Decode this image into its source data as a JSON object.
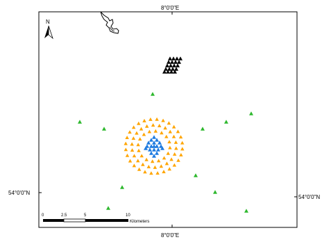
{
  "map": {
    "graticule": {
      "lon_label": "8°0'0\"E",
      "lat_label": "54°0'0\"N"
    },
    "north_arrow": {
      "label": "N",
      "icon": "north-arrow-icon"
    },
    "scale_bar": {
      "ticks": [
        "0",
        "2.5",
        "5",
        "10"
      ],
      "unit": "Kilometers"
    },
    "legend_colors": {
      "black_cluster": "#000000",
      "orange_ring": "#FFA500",
      "blue_core": "#1E7BE0",
      "green_points": "#2EB82E"
    },
    "features": {
      "coastline": "coastline-shape",
      "black_triangles": "black-triangle-cluster",
      "orange_triangles": "orange-triangle-ring",
      "blue_triangles": "blue-triangle-core",
      "green_triangles": "green-scattered-triangles"
    }
  }
}
